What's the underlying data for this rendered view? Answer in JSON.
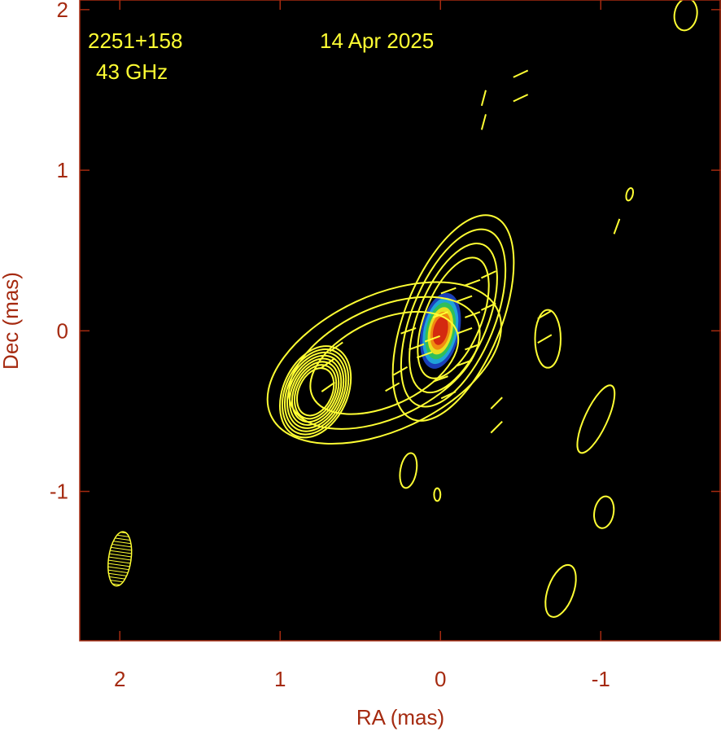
{
  "chart_data": {
    "type": "contour",
    "source_label": "2251+158",
    "frequency_label": "43 GHz",
    "date_label": "14 Apr 2025",
    "x_label": "RA (mas)",
    "y_label": "Dec (mas)",
    "xlim": [
      2.25,
      -1.75
    ],
    "ylim": [
      -1.93,
      2.06
    ],
    "xticks": [
      2,
      1,
      0,
      -1
    ],
    "yticks": [
      -1,
      0,
      1,
      2
    ],
    "contour_color": "#ffff33",
    "components": [
      {
        "x": 0.35,
        "y": -0.2,
        "rx": 0.78,
        "ry": 0.42,
        "angle": -25,
        "n": 3
      },
      {
        "x": -0.08,
        "y": 0.08,
        "rx": 0.3,
        "ry": 0.68,
        "angle": 22,
        "n": 4
      },
      {
        "x": 0.78,
        "y": -0.38,
        "rx": 0.2,
        "ry": 0.3,
        "angle": 25,
        "n": 8
      },
      {
        "x": -0.67,
        "y": -0.05,
        "rx": 0.08,
        "ry": 0.18,
        "angle": 0,
        "n": 1
      },
      {
        "x": -0.97,
        "y": -0.55,
        "rx": 0.07,
        "ry": 0.23,
        "angle": 25,
        "n": 1
      },
      {
        "x": -1.02,
        "y": -1.13,
        "rx": 0.06,
        "ry": 0.1,
        "angle": 10,
        "n": 1
      },
      {
        "x": -0.75,
        "y": -1.62,
        "rx": 0.08,
        "ry": 0.17,
        "angle": 20,
        "n": 1
      },
      {
        "x": -1.53,
        "y": 1.97,
        "rx": 0.07,
        "ry": 0.1,
        "angle": 10,
        "n": 1
      },
      {
        "x": -1.18,
        "y": 0.85,
        "rx": 0.02,
        "ry": 0.04,
        "angle": 15,
        "n": 1
      },
      {
        "x": 0.2,
        "y": -0.87,
        "rx": 0.05,
        "ry": 0.11,
        "angle": 10,
        "n": 1
      },
      {
        "x": 0.02,
        "y": -1.02,
        "rx": 0.02,
        "ry": 0.04,
        "angle": 0,
        "n": 1
      }
    ],
    "core": {
      "x": 0.0,
      "y": 0.0,
      "rx": 0.12,
      "ry": 0.24,
      "angle": 12,
      "colors": [
        "#1a3fb8",
        "#1fa4d8",
        "#2fbf5a",
        "#e8e020",
        "#f08a10",
        "#d42a10"
      ]
    },
    "evpa_length": 0.1,
    "evpa": [
      {
        "x": -0.2,
        "y": 0.3,
        "angle": 20
      },
      {
        "x": -0.15,
        "y": 0.2,
        "angle": 20
      },
      {
        "x": -0.2,
        "y": 0.1,
        "angle": 20
      },
      {
        "x": -0.15,
        "y": 0.0,
        "angle": 20
      },
      {
        "x": -0.2,
        "y": -0.1,
        "angle": 20
      },
      {
        "x": -0.15,
        "y": -0.2,
        "angle": 20
      },
      {
        "x": -0.05,
        "y": 0.25,
        "angle": 20
      },
      {
        "x": 0.0,
        "y": 0.1,
        "angle": 20
      },
      {
        "x": 0.05,
        "y": -0.05,
        "angle": 20
      },
      {
        "x": 0.1,
        "y": -0.15,
        "angle": 20
      },
      {
        "x": 0.0,
        "y": -0.3,
        "angle": 20
      },
      {
        "x": -0.05,
        "y": -0.4,
        "angle": 25
      },
      {
        "x": 0.2,
        "y": 0.0,
        "angle": 20
      },
      {
        "x": 0.15,
        "y": -0.1,
        "angle": 20
      },
      {
        "x": -0.3,
        "y": 0.35,
        "angle": 25
      },
      {
        "x": -0.3,
        "y": 0.15,
        "angle": 25
      },
      {
        "x": 0.25,
        "y": -0.25,
        "angle": 30
      },
      {
        "x": 0.3,
        "y": -0.35,
        "angle": 30
      },
      {
        "x": 0.7,
        "y": -0.2,
        "angle": 35
      },
      {
        "x": 0.7,
        "y": -0.35,
        "angle": 35
      },
      {
        "x": 0.65,
        "y": -0.1,
        "angle": 35
      },
      {
        "x": -0.35,
        "y": -0.45,
        "angle": 45
      },
      {
        "x": -0.35,
        "y": -0.6,
        "angle": 45
      },
      {
        "x": -0.65,
        "y": 0.1,
        "angle": 30
      },
      {
        "x": -0.65,
        "y": -0.05,
        "angle": 30
      },
      {
        "x": -0.5,
        "y": 1.6,
        "angle": 25
      },
      {
        "x": -0.5,
        "y": 1.45,
        "angle": 25
      },
      {
        "x": -0.27,
        "y": 1.45,
        "angle": 75
      },
      {
        "x": -0.27,
        "y": 1.3,
        "angle": 75
      },
      {
        "x": -1.1,
        "y": 0.65,
        "angle": 70
      }
    ],
    "beam": {
      "x": 2.0,
      "y": -1.42,
      "rx": 0.07,
      "ry": 0.17,
      "angle": 8
    }
  }
}
